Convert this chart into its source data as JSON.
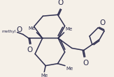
{
  "bg_color": "#f5f0e8",
  "line_color": "#2d2d4e",
  "line_width": 1.1,
  "figsize": [
    1.63,
    1.11
  ],
  "dpi": 100,
  "xlim": [
    -1.6,
    2.4
  ],
  "ylim": [
    -1.3,
    1.3
  ]
}
